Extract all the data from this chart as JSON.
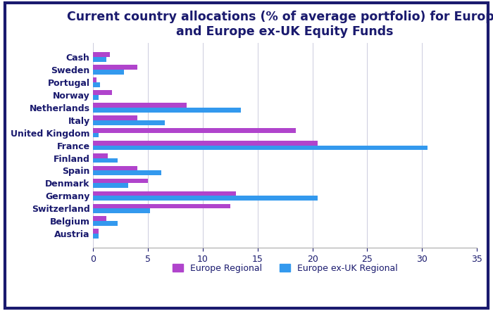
{
  "title": "Current country allocations (% of average portfolio) for Europe\nand Europe ex-UK Equity Funds",
  "categories": [
    "Austria",
    "Belgium",
    "Switzerland",
    "Germany",
    "Denmark",
    "Spain",
    "Finland",
    "France",
    "United Kingdom",
    "Italy",
    "Netherlands",
    "Norway",
    "Portugal",
    "Sweden",
    "Cash"
  ],
  "europe_regional": [
    0.5,
    1.2,
    12.5,
    13.0,
    5.0,
    4.0,
    1.3,
    20.5,
    18.5,
    4.0,
    8.5,
    1.7,
    0.3,
    4.0,
    1.5
  ],
  "europe_exuk_regional": [
    0.5,
    2.2,
    5.2,
    20.5,
    3.2,
    6.2,
    2.2,
    30.5,
    0.5,
    6.5,
    13.5,
    0.5,
    0.6,
    2.8,
    1.2
  ],
  "europe_color": "#b044cc",
  "exuk_color": "#3399ee",
  "title_color": "#1a1a6e",
  "background_color": "#ffffff",
  "border_color": "#1a1a6e",
  "xlim": [
    0,
    35
  ],
  "xticks": [
    0,
    5,
    10,
    15,
    20,
    25,
    30,
    35
  ],
  "legend_labels": [
    "Europe Regional",
    "Europe ex-UK Regional"
  ],
  "title_fontsize": 12.5,
  "label_fontsize": 9,
  "tick_fontsize": 9,
  "bar_height": 0.38
}
